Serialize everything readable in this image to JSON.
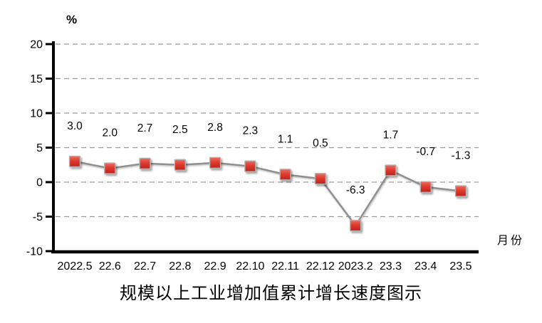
{
  "chart_data": {
    "type": "line",
    "title": "规模以上工业增加值累计增长速度图示",
    "unit_label": "%",
    "x_axis_label": "月份",
    "categories": [
      "2022.5",
      "22.6",
      "22.7",
      "22.8",
      "22.9",
      "22.10",
      "22.11",
      "22.12",
      "2023.2",
      "23.3",
      "23.4",
      "23.5"
    ],
    "values": [
      3.0,
      2.0,
      2.7,
      2.5,
      2.8,
      2.3,
      1.1,
      0.5,
      -6.3,
      1.7,
      -0.7,
      -1.3
    ],
    "data_labels": [
      "3.0",
      "2.0",
      "2.7",
      "2.5",
      "2.8",
      "2.3",
      "1.1",
      "0.5",
      "-6.3",
      "1.7",
      "-0.7",
      "-1.3"
    ],
    "y_ticks": [
      20,
      15,
      10,
      5,
      0,
      -5,
      -10
    ],
    "ylim": [
      -10,
      20
    ],
    "grid": "dashed horizontal",
    "legend": "none",
    "colors": {
      "marker_top": "#ef6d60",
      "marker_mid": "#dd3b30",
      "marker_bottom": "#c2211a",
      "marker_border": "#b3b3b3",
      "line": "#8f8f8f",
      "grid": "#9a9a9a",
      "axis": "#000000"
    }
  }
}
